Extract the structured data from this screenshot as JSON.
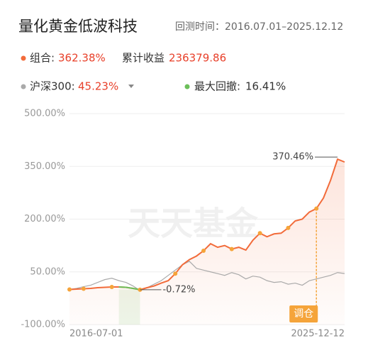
{
  "header": {
    "title": "量化黄金低波科技",
    "period": "回测时间：2016.07.01–2025.12.12"
  },
  "summary": {
    "portfolio_label": "组合:",
    "portfolio_return": "362.38%",
    "cum_label": "累计收益",
    "cum_value": "236379.86",
    "index_label": "沪深300:",
    "index_return": "45.23%",
    "drawdown_label": "最大回撤:",
    "drawdown_value": "16.41%"
  },
  "chart_data": {
    "type": "line",
    "watermark": "天天基金",
    "categories": [
      "2016-07-01",
      null,
      null,
      null,
      null,
      null,
      null,
      null,
      null,
      null,
      null,
      null,
      null,
      null,
      null,
      null,
      null,
      null,
      null,
      null,
      null,
      null,
      null,
      null,
      null,
      null,
      null,
      null,
      null,
      null,
      null,
      null,
      null,
      null,
      null,
      null,
      null,
      null,
      null,
      "2025-12-12"
    ],
    "series": [
      {
        "name": "组合",
        "color": "#f26b3a",
        "values": [
          0,
          1,
          2,
          3,
          5,
          6,
          7,
          7,
          6,
          3,
          -0.72,
          5,
          10,
          18,
          25,
          45,
          70,
          85,
          95,
          110,
          130,
          120,
          125,
          115,
          120,
          112,
          140,
          160,
          150,
          158,
          160,
          175,
          195,
          200,
          220,
          230,
          260,
          310,
          370.46,
          362.38
        ]
      },
      {
        "name": "沪深300",
        "color": "#aaaaaa",
        "values": [
          0,
          3,
          8,
          12,
          20,
          28,
          32,
          25,
          20,
          10,
          -3,
          5,
          15,
          25,
          40,
          55,
          70,
          80,
          60,
          55,
          50,
          45,
          40,
          48,
          42,
          30,
          38,
          35,
          25,
          20,
          22,
          15,
          18,
          12,
          25,
          30,
          35,
          40,
          48,
          45.23
        ]
      }
    ],
    "ylim": [
      -100,
      500
    ],
    "yticks": [
      {
        "value": -100,
        "label": "-100.00%"
      },
      {
        "value": 50,
        "label": "50.00%"
      },
      {
        "value": 200,
        "label": "200.00%"
      },
      {
        "value": 350,
        "label": "350.00%"
      },
      {
        "value": 500,
        "label": "500.00%"
      }
    ],
    "grid": true,
    "drawdown": {
      "start": 7,
      "end": 10,
      "color": "#6cbf5a"
    },
    "markers": [
      0,
      2,
      6,
      10,
      15,
      19,
      23,
      27,
      31,
      35
    ],
    "rebalance": {
      "index": 35,
      "label": "调仓",
      "color": "#f5a43a"
    },
    "annotations": [
      {
        "index": 38,
        "label": "370.46%"
      },
      {
        "index": 10,
        "label": "-0.72%"
      }
    ]
  }
}
